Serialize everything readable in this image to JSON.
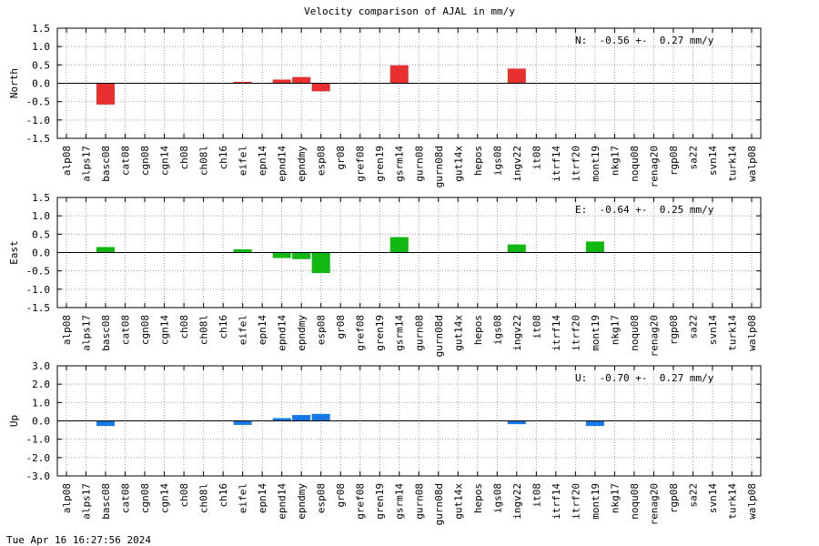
{
  "chart_data": {
    "type": "bar",
    "title": "Velocity comparison of AJAL in mm/y",
    "categories": [
      "alp08",
      "alps17",
      "basc08",
      "cat08",
      "cgn08",
      "cgn14",
      "ch08",
      "ch08l",
      "ch16",
      "eifel",
      "epn14",
      "epnd14",
      "epndmy",
      "esp08",
      "gr08",
      "gref08",
      "gren19",
      "gsrm14",
      "gurn08",
      "gurn08d",
      "gut14x",
      "hepos",
      "igs08",
      "ingv22",
      "it08",
      "itrf14",
      "itrf20",
      "mont19",
      "nkg17",
      "noqu08",
      "renag20",
      "rgp08",
      "sa22",
      "svn14",
      "turk14",
      "walp08"
    ],
    "panels": [
      {
        "ylabel": "North",
        "color": "#e83030",
        "ylim": [
          -1.5,
          1.5
        ],
        "yticks": [
          "-1.5",
          "-1.0",
          "-0.5",
          "0.0",
          "0.5",
          "1.0",
          "1.5"
        ],
        "summary": "N:  -0.56 +-  0.27 mm/y",
        "values": [
          null,
          null,
          -0.58,
          null,
          null,
          null,
          null,
          null,
          null,
          0.04,
          null,
          0.1,
          0.17,
          -0.22,
          null,
          null,
          null,
          0.49,
          null,
          null,
          null,
          null,
          null,
          0.4,
          null,
          null,
          null,
          null,
          null,
          null,
          null,
          null,
          null,
          null,
          null,
          null
        ]
      },
      {
        "ylabel": "East",
        "color": "#10b810",
        "ylim": [
          -1.5,
          1.5
        ],
        "yticks": [
          "-1.5",
          "-1.0",
          "-0.5",
          "0.0",
          "0.5",
          "1.0",
          "1.5"
        ],
        "summary": "E:  -0.64 +-  0.25 mm/y",
        "values": [
          null,
          null,
          0.15,
          null,
          null,
          null,
          null,
          null,
          null,
          0.09,
          null,
          -0.15,
          -0.18,
          -0.56,
          null,
          null,
          null,
          0.42,
          null,
          null,
          null,
          null,
          null,
          0.22,
          null,
          null,
          null,
          0.3,
          null,
          null,
          null,
          null,
          null,
          null,
          null,
          null
        ]
      },
      {
        "ylabel": "Up",
        "color": "#1878e8",
        "ylim": [
          -3.0,
          3.0
        ],
        "yticks": [
          "-3.0",
          "-2.0",
          "-1.0",
          "0.0",
          "1.0",
          "2.0",
          "3.0"
        ],
        "summary": "U:  -0.70 +-  0.27 mm/y",
        "values": [
          null,
          null,
          -0.28,
          null,
          null,
          null,
          null,
          null,
          null,
          -0.22,
          null,
          0.15,
          0.32,
          0.38,
          null,
          null,
          null,
          null,
          null,
          null,
          null,
          null,
          null,
          -0.18,
          null,
          null,
          null,
          -0.28,
          null,
          null,
          null,
          null,
          null,
          null,
          null,
          null
        ]
      }
    ]
  },
  "timestamp": "Tue Apr 16 16:27:56 2024"
}
